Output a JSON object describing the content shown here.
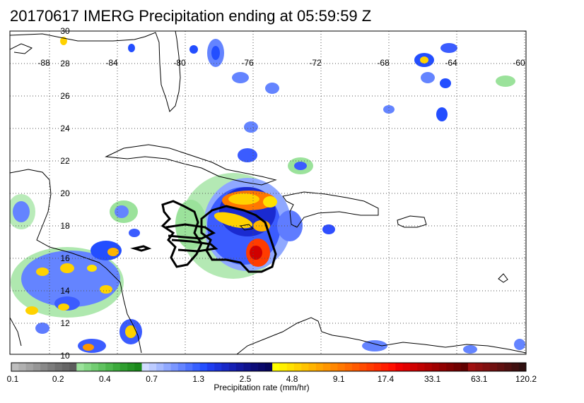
{
  "title": "20170617 IMERG Precipitation ending at 05:59:59 Z",
  "map": {
    "lon_labels": [
      "-88",
      "-84",
      "-80",
      "-76",
      "-72",
      "-68",
      "-64",
      "-60"
    ],
    "lat_labels": [
      "30",
      "28",
      "26",
      "24",
      "22",
      "20",
      "18",
      "16",
      "14",
      "12",
      "10"
    ],
    "colors": {
      "coast": "#000000",
      "grid": "#555555",
      "track": "#000000"
    }
  },
  "colorbar": {
    "title": "Precipitation rate (mm/hr)",
    "tick_labels": [
      "0.1",
      "0.2",
      "0.4",
      "0.7",
      "1.3",
      "2.5",
      "4.8",
      "9.1",
      "17.4",
      "33.1",
      "63.1",
      "120.2"
    ],
    "colors": [
      "#bdbdbd",
      "#b0b0b0",
      "#a3a3a3",
      "#969696",
      "#898989",
      "#7c7c7c",
      "#707070",
      "#666666",
      "#5c5c5c",
      "#9be29b",
      "#86d886",
      "#72cd72",
      "#5fc25f",
      "#4db74d",
      "#3caa3c",
      "#2f9e2f",
      "#249324",
      "#1a881a",
      "#d2dcff",
      "#bccbff",
      "#a6baff",
      "#90a8ff",
      "#7a96ff",
      "#6484ff",
      "#4e72ff",
      "#3860ff",
      "#234eff",
      "#1e3cf0",
      "#1b32dc",
      "#1828c8",
      "#1520b4",
      "#1218a0",
      "#0f128c",
      "#0c0c78",
      "#09086a",
      "#06055c",
      "#ffff00",
      "#fff000",
      "#ffe100",
      "#ffd200",
      "#ffc300",
      "#ffb400",
      "#ffa500",
      "#ff9600",
      "#ff8700",
      "#ff7800",
      "#ff6900",
      "#ff5a00",
      "#ff4b00",
      "#ff3c00",
      "#ff2d00",
      "#ff1e00",
      "#ff0f00",
      "#f00000",
      "#e00000",
      "#d00000",
      "#c00000",
      "#b00000",
      "#a00000",
      "#900000",
      "#800000",
      "#700000",
      "#600000",
      "#a01010",
      "#901010",
      "#801010",
      "#701010",
      "#601010",
      "#501010",
      "#401010",
      "#301010"
    ]
  }
}
